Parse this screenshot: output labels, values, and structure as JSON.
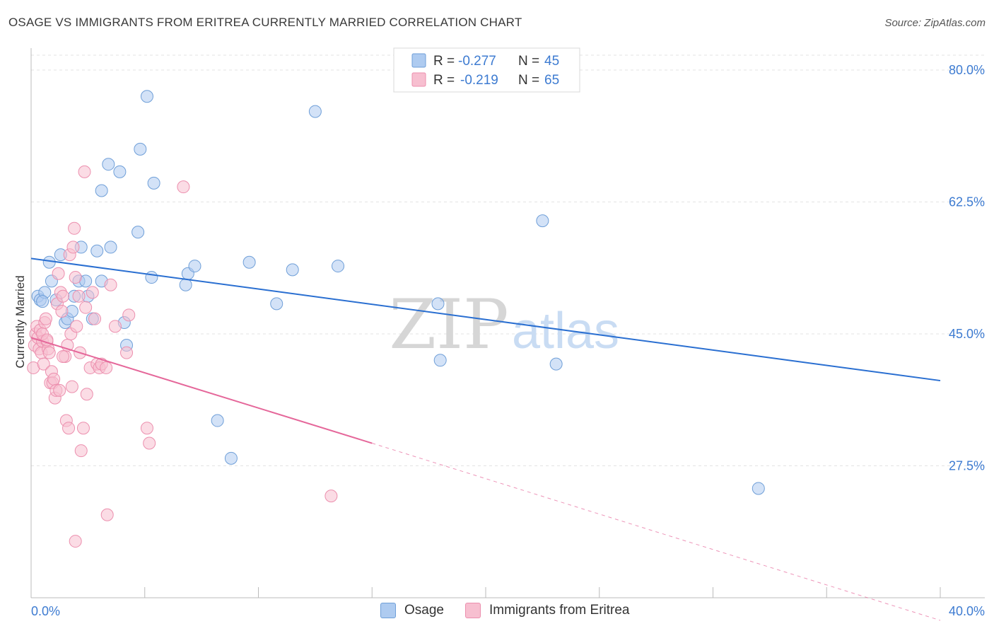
{
  "title": "OSAGE VS IMMIGRANTS FROM ERITREA CURRENTLY MARRIED CORRELATION CHART",
  "source": "Source: ZipAtlas.com",
  "watermark": {
    "zip": "ZIP",
    "atlas": "atlas"
  },
  "colors": {
    "osage_fill": "#aecbf0",
    "osage_stroke": "#6f9fd8",
    "osage_line": "#2a6fd1",
    "eritrea_fill": "#f7bfd0",
    "eritrea_stroke": "#ec8fae",
    "eritrea_line": "#e5679a",
    "tick_label": "#3d7bd1",
    "grid": "#e3e3e3"
  },
  "legend_top": {
    "r_label": "R = ",
    "n_label": "N = ",
    "rows": [
      {
        "series": "Osage",
        "r": "-0.277",
        "n": "45"
      },
      {
        "series": "Immigrants from Eritrea",
        "r": "-0.219",
        "n": "65"
      }
    ]
  },
  "chart_data": {
    "type": "scatter",
    "title": "OSAGE VS IMMIGRANTS FROM ERITREA CURRENTLY MARRIED CORRELATION CHART",
    "xlabel": "",
    "ylabel": "Currently Married",
    "xlim": [
      0,
      40
    ],
    "ylim": [
      10,
      83
    ],
    "x_tick_labels": [
      "0.0%",
      "40.0%"
    ],
    "y_ticks": [
      27.5,
      45.0,
      62.5,
      80.0
    ],
    "y_tick_labels": [
      "27.5%",
      "45.0%",
      "62.5%",
      "80.0%"
    ],
    "grid": true,
    "series": [
      {
        "name": "Osage",
        "points": [
          [
            0.3,
            50.0
          ],
          [
            0.4,
            49.5
          ],
          [
            0.6,
            50.5
          ],
          [
            0.8,
            54.5
          ],
          [
            0.9,
            52.0
          ],
          [
            1.1,
            49.5
          ],
          [
            1.3,
            55.5
          ],
          [
            1.5,
            46.5
          ],
          [
            1.6,
            47.0
          ],
          [
            1.8,
            48.0
          ],
          [
            1.9,
            50.0
          ],
          [
            2.1,
            52.0
          ],
          [
            2.2,
            56.5
          ],
          [
            2.4,
            52.0
          ],
          [
            2.5,
            50.0
          ],
          [
            2.7,
            47.0
          ],
          [
            2.9,
            56.0
          ],
          [
            3.1,
            52.0
          ],
          [
            3.1,
            64.0
          ],
          [
            3.4,
            67.5
          ],
          [
            3.5,
            56.5
          ],
          [
            3.9,
            66.5
          ],
          [
            4.1,
            46.5
          ],
          [
            4.2,
            43.5
          ],
          [
            4.7,
            58.5
          ],
          [
            4.8,
            69.5
          ],
          [
            5.1,
            76.5
          ],
          [
            5.3,
            52.5
          ],
          [
            5.4,
            65.0
          ],
          [
            6.8,
            51.5
          ],
          [
            6.9,
            53.0
          ],
          [
            7.2,
            54.0
          ],
          [
            8.2,
            33.5
          ],
          [
            8.8,
            28.5
          ],
          [
            9.6,
            54.5
          ],
          [
            10.8,
            49.0
          ],
          [
            11.5,
            53.5
          ],
          [
            12.5,
            74.5
          ],
          [
            13.5,
            54.0
          ],
          [
            17.9,
            49.0
          ],
          [
            18.0,
            41.5
          ],
          [
            22.5,
            60.0
          ],
          [
            23.1,
            41.0
          ],
          [
            32.0,
            24.5
          ],
          [
            0.5,
            49.3
          ]
        ],
        "trend": {
          "x0": 0,
          "y0": 55.0,
          "x1": 40,
          "y1": 38.8
        }
      },
      {
        "name": "Immigrants from Eritrea",
        "points": [
          [
            0.1,
            40.5
          ],
          [
            0.15,
            43.5
          ],
          [
            0.2,
            45.0
          ],
          [
            0.25,
            46.0
          ],
          [
            0.3,
            44.5
          ],
          [
            0.35,
            43.0
          ],
          [
            0.4,
            45.5
          ],
          [
            0.45,
            42.5
          ],
          [
            0.5,
            44.0
          ],
          [
            0.55,
            41.0
          ],
          [
            0.6,
            46.5
          ],
          [
            0.65,
            47.0
          ],
          [
            0.7,
            44.0
          ],
          [
            0.75,
            43.0
          ],
          [
            0.8,
            42.5
          ],
          [
            0.85,
            38.5
          ],
          [
            0.9,
            40.0
          ],
          [
            0.95,
            38.5
          ],
          [
            1.0,
            39.0
          ],
          [
            1.05,
            36.5
          ],
          [
            1.1,
            37.5
          ],
          [
            1.15,
            49.0
          ],
          [
            1.2,
            53.0
          ],
          [
            1.25,
            37.5
          ],
          [
            1.3,
            50.5
          ],
          [
            1.35,
            48.0
          ],
          [
            1.4,
            50.0
          ],
          [
            1.5,
            42.0
          ],
          [
            1.55,
            33.5
          ],
          [
            1.6,
            43.5
          ],
          [
            1.65,
            32.5
          ],
          [
            1.7,
            55.5
          ],
          [
            1.75,
            45.0
          ],
          [
            1.8,
            38.0
          ],
          [
            1.85,
            56.5
          ],
          [
            1.9,
            59.0
          ],
          [
            1.95,
            52.5
          ],
          [
            2.0,
            46.0
          ],
          [
            2.1,
            50.0
          ],
          [
            2.15,
            42.5
          ],
          [
            2.2,
            29.5
          ],
          [
            2.3,
            32.5
          ],
          [
            2.35,
            66.5
          ],
          [
            2.4,
            48.5
          ],
          [
            2.45,
            37.0
          ],
          [
            2.6,
            40.5
          ],
          [
            2.7,
            50.5
          ],
          [
            2.8,
            47.0
          ],
          [
            2.9,
            41.0
          ],
          [
            3.0,
            40.5
          ],
          [
            3.1,
            41.0
          ],
          [
            3.3,
            40.5
          ],
          [
            3.35,
            21.0
          ],
          [
            3.5,
            51.5
          ],
          [
            3.7,
            46.0
          ],
          [
            4.2,
            42.5
          ],
          [
            4.3,
            47.5
          ],
          [
            5.1,
            32.5
          ],
          [
            5.2,
            30.5
          ],
          [
            6.7,
            64.5
          ],
          [
            13.2,
            23.5
          ],
          [
            1.95,
            17.5
          ],
          [
            0.5,
            45.0
          ],
          [
            0.7,
            44.2
          ],
          [
            1.4,
            42.0
          ]
        ],
        "trend": {
          "x0": 0,
          "y0": 44.5,
          "x1": 15,
          "y1": 30.5
        },
        "trend_dashed": {
          "x0": 15,
          "y0": 30.5,
          "x1": 40,
          "y1": 7.0
        }
      }
    ]
  },
  "legend_bottom": [
    {
      "label": "Osage"
    },
    {
      "label": "Immigrants from Eritrea"
    }
  ]
}
